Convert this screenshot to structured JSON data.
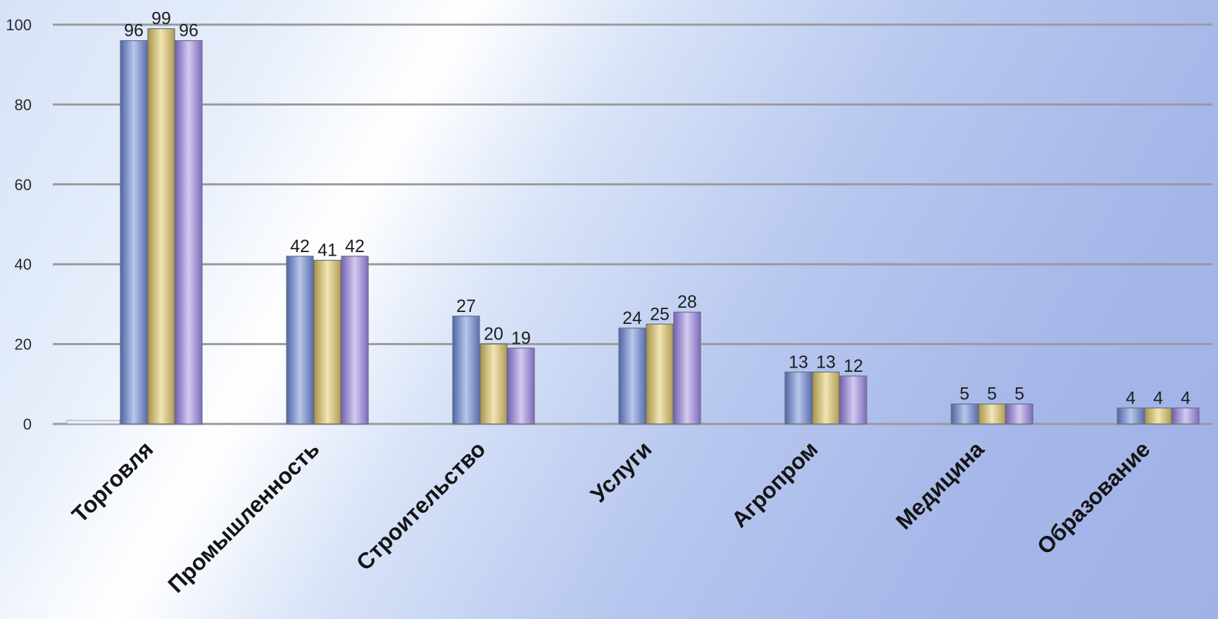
{
  "chart_data": {
    "type": "bar",
    "categories": [
      "Торговля",
      "Промышленность",
      "Строительство",
      "Услуги",
      "Агропром",
      "Медицина",
      "Образование"
    ],
    "series": [
      {
        "values": [
          96,
          42,
          27,
          24,
          13,
          5,
          4
        ],
        "color": "#7a8fc4"
      },
      {
        "values": [
          99,
          41,
          20,
          25,
          13,
          5,
          4
        ],
        "color": "#cdb971"
      },
      {
        "values": [
          96,
          42,
          19,
          28,
          12,
          5,
          4
        ],
        "color": "#9d8ed0"
      }
    ],
    "ylim": [
      0,
      100
    ],
    "yticks": [
      0,
      20,
      40,
      60,
      80,
      100
    ],
    "grid": true,
    "legend": "none",
    "data_labels": true
  }
}
